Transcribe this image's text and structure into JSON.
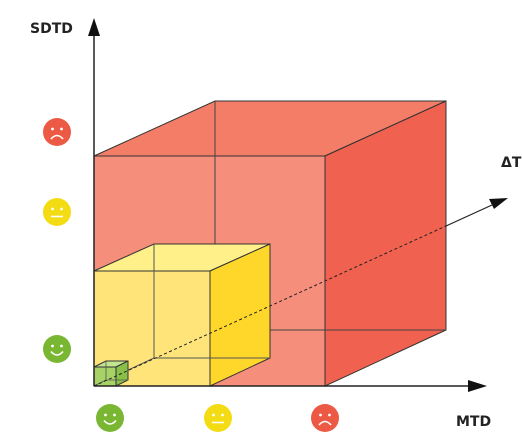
{
  "axes": {
    "y_label": "SDTD",
    "x_label": "MTD",
    "z_label": "ΔT"
  },
  "levels": [
    {
      "mood": "happy",
      "color": "#7ab835"
    },
    {
      "mood": "neutral",
      "color": "#f2dc1a"
    },
    {
      "mood": "sad",
      "color": "#e95845"
    }
  ],
  "cubes": [
    {
      "name": "large",
      "mood": "sad",
      "color": "#f06452"
    },
    {
      "name": "medium",
      "mood": "neutral",
      "color": "#ffe36a"
    },
    {
      "name": "small",
      "mood": "happy",
      "color": "#9fd061"
    }
  ]
}
